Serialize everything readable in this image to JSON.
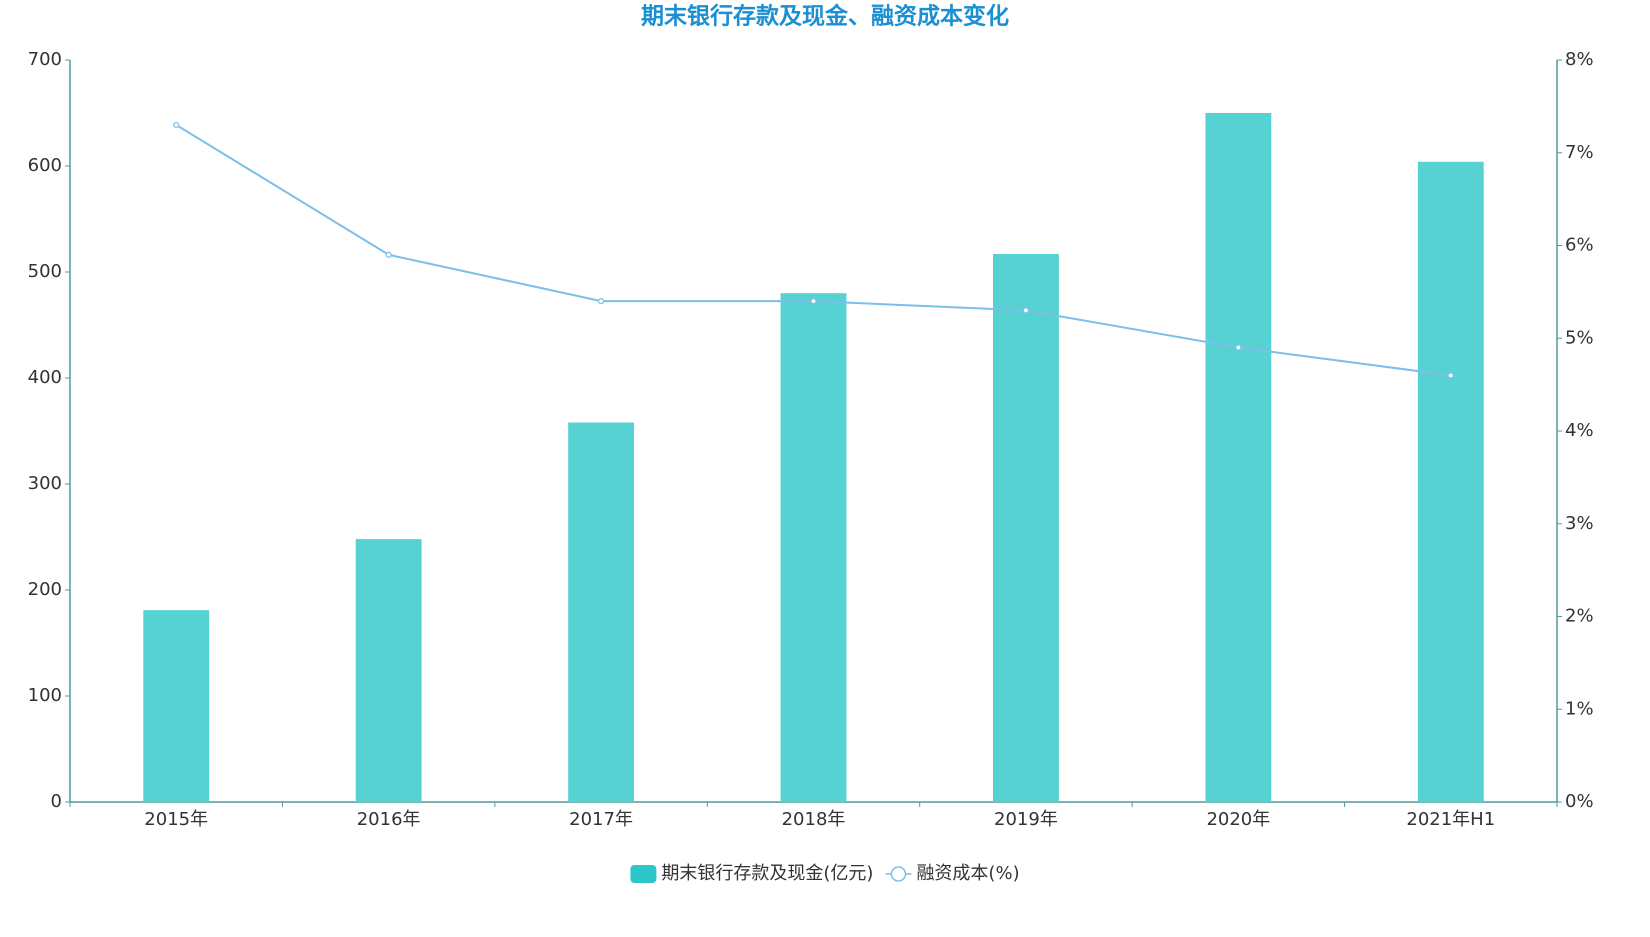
{
  "chart_data": {
    "type": "bar",
    "title": "期末银行存款及现金、融资成本变化",
    "categories": [
      "2015年",
      "2016年",
      "2017年",
      "2018年",
      "2019年",
      "2020年",
      "2021年H1"
    ],
    "series": [
      {
        "name": "期末银行存款及现金(亿元)",
        "type": "bar",
        "color": "#57d2d2",
        "values": [
          181,
          248,
          358,
          480,
          517,
          650,
          604
        ]
      },
      {
        "name": "融资成本(%)",
        "type": "line",
        "axis": "y2",
        "color": "#7cbfea",
        "values": [
          7.3,
          5.9,
          5.4,
          5.4,
          5.3,
          4.9,
          4.6
        ]
      }
    ],
    "ylim": [
      0,
      700
    ],
    "yticks": [
      0,
      100,
      200,
      300,
      400,
      500,
      600,
      700
    ],
    "y2lim": [
      0,
      8
    ],
    "y2ticks": [
      {
        "value": 0,
        "label": "0%"
      },
      {
        "value": 1,
        "label": "1%"
      },
      {
        "value": 2,
        "label": "2%"
      },
      {
        "value": 3,
        "label": "3%"
      },
      {
        "value": 4,
        "label": "4%"
      },
      {
        "value": 5,
        "label": "5%"
      },
      {
        "value": 6,
        "label": "6%"
      },
      {
        "value": 7,
        "label": "7%"
      },
      {
        "value": 8,
        "label": "8%"
      }
    ],
    "grid": false,
    "legend": "bottom"
  }
}
